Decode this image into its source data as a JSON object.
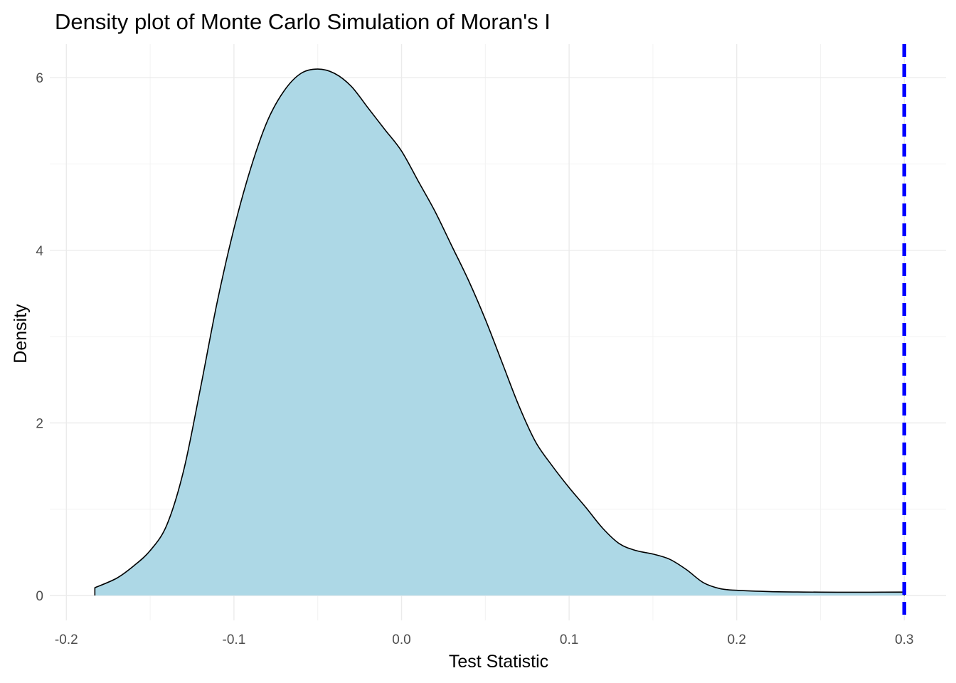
{
  "chart_data": {
    "type": "area",
    "title": "Density plot of Monte Carlo Simulation of Moran's I",
    "xlabel": "Test Statistic",
    "ylabel": "Density",
    "xlim": [
      -0.2,
      0.3
    ],
    "ylim": [
      0,
      6
    ],
    "x_ticks": [
      -0.2,
      -0.1,
      0.0,
      0.1,
      0.2,
      0.3
    ],
    "x_tick_labels": [
      "-0.2",
      "-0.1",
      "0.0",
      "0.1",
      "0.2",
      "0.3"
    ],
    "y_ticks": [
      0,
      2,
      4,
      6
    ],
    "y_tick_labels": [
      "0",
      "2",
      "4",
      "6"
    ],
    "grid": true,
    "fill_color": "#add8e6",
    "line_color": "#000000",
    "x": [
      -0.183,
      -0.17,
      -0.16,
      -0.15,
      -0.14,
      -0.13,
      -0.12,
      -0.11,
      -0.1,
      -0.09,
      -0.08,
      -0.07,
      -0.06,
      -0.05,
      -0.04,
      -0.03,
      -0.02,
      -0.01,
      0.0,
      0.01,
      0.02,
      0.03,
      0.04,
      0.05,
      0.06,
      0.07,
      0.08,
      0.09,
      0.1,
      0.11,
      0.12,
      0.13,
      0.14,
      0.15,
      0.16,
      0.17,
      0.18,
      0.19,
      0.2,
      0.22,
      0.24,
      0.26,
      0.28,
      0.3
    ],
    "y": [
      0.09,
      0.2,
      0.34,
      0.52,
      0.82,
      1.45,
      2.4,
      3.4,
      4.25,
      4.95,
      5.5,
      5.85,
      6.05,
      6.1,
      6.05,
      5.9,
      5.65,
      5.4,
      5.15,
      4.8,
      4.45,
      4.05,
      3.65,
      3.2,
      2.7,
      2.2,
      1.78,
      1.5,
      1.25,
      1.02,
      0.78,
      0.6,
      0.52,
      0.48,
      0.42,
      0.3,
      0.15,
      0.08,
      0.06,
      0.045,
      0.04,
      0.038,
      0.038,
      0.04
    ],
    "vline": {
      "x": 0.3,
      "color": "#0000ff",
      "style": "dashed"
    }
  }
}
